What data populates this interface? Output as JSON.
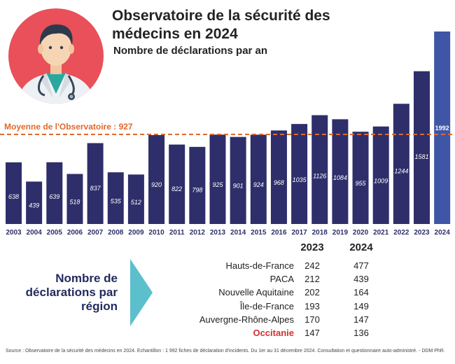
{
  "header": {
    "title": "Observatoire de la sécurité des médecins en 2024",
    "subtitle": "Nombre de déclarations par an"
  },
  "illustration": {
    "icon": "doctor-icon"
  },
  "average": {
    "label": "Moyenne de l'Observatoire : 927",
    "value": 927
  },
  "chart_data": {
    "type": "bar",
    "categories": [
      "2003",
      "2004",
      "2005",
      "2006",
      "2007",
      "2008",
      "2009",
      "2010",
      "2011",
      "2012",
      "2013",
      "2014",
      "2015",
      "2016",
      "2017",
      "2018",
      "2019",
      "2020",
      "2021",
      "2022",
      "2023",
      "2024"
    ],
    "values": [
      638,
      439,
      639,
      518,
      837,
      535,
      512,
      920,
      822,
      798,
      925,
      901,
      924,
      968,
      1035,
      1126,
      1084,
      955,
      1009,
      1244,
      1581,
      1992
    ],
    "title": "Nombre de déclarations par an",
    "xlabel": "",
    "ylabel": "",
    "ylim": [
      0,
      2000
    ],
    "grid": false,
    "reference_line": {
      "value": 927,
      "label": "Moyenne de l'Observatoire : 927"
    },
    "colors": {
      "bar": "#2e2e6b",
      "highlight_bar": "#3f56a6",
      "reference_line": "#e0692a"
    }
  },
  "regions": {
    "heading": "Nombre de déclarations par région",
    "headers": [
      "2023",
      "2024"
    ],
    "rows": [
      {
        "name": "Hauts-de-France",
        "v2023": 242,
        "v2024": 477
      },
      {
        "name": "PACA",
        "v2023": 212,
        "v2024": 439
      },
      {
        "name": "Nouvelle Aquitaine",
        "v2023": 202,
        "v2024": 164
      },
      {
        "name": "Île-de-France",
        "v2023": 193,
        "v2024": 149
      },
      {
        "name": "Auvergne-Rhône-Alpes",
        "v2023": 170,
        "v2024": 147
      },
      {
        "name": "Occitanie",
        "v2023": 147,
        "v2024": 136,
        "highlight": true
      }
    ]
  },
  "footer": {
    "source": "Source :  Observatoire de la sécurité des médecins en 2024. Echantillon : 1 992 fiches de déclaration d'incidents. Du 1er au 31 décembre 2024. Consultation et questionnaire auto-administré. - DDM PhR."
  },
  "colors": {
    "title": "#232323",
    "accent_orange": "#e0692a",
    "bar": "#2e2e6b",
    "bar_highlight": "#3f56a6",
    "arrow": "#5bbfcc",
    "avatar_bg": "#e9505a",
    "highlight_text": "#d23030"
  }
}
